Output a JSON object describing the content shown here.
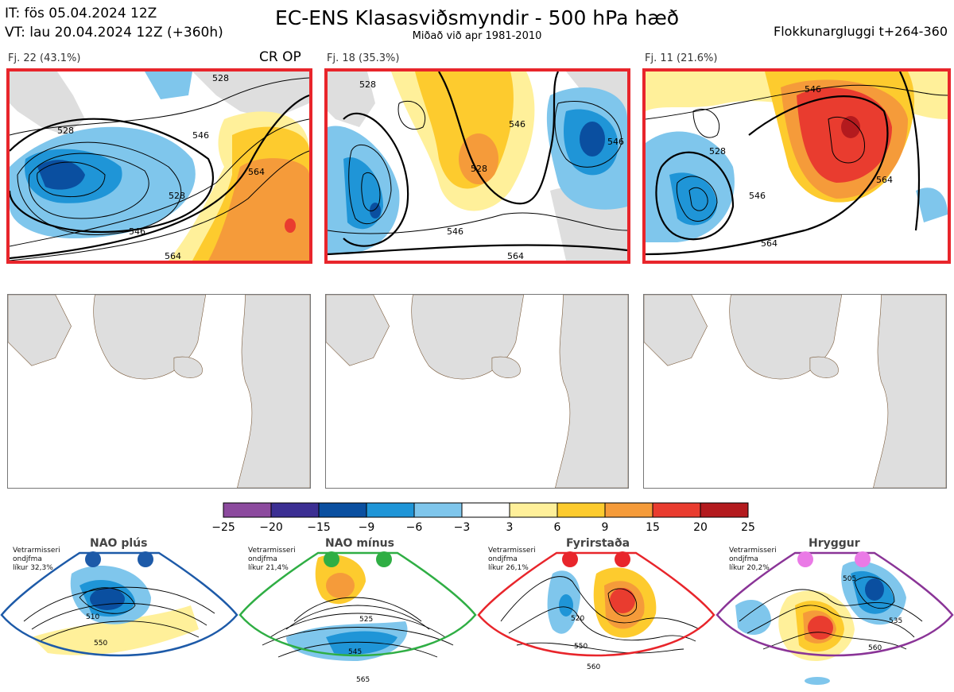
{
  "header": {
    "init_time": "IT: fös 05.04.2024 12Z",
    "valid_time": "VT: lau 20.04.2024 12Z  (+360h)",
    "title": "EC-ENS Klasasviðsmyndir - 500 hPa hæð",
    "subtitle": "Miðað við apr 1981-2010",
    "window": "Flokkunargluggi t+264-360"
  },
  "clusters": [
    {
      "label": "Fj. 22 (43.1%)",
      "contour_labels": [
        "528",
        "528",
        "546",
        "564",
        "546",
        "528",
        "564"
      ]
    },
    {
      "label": "Fj. 18 (35.3%)",
      "contour_labels": [
        "528",
        "546",
        "528",
        "546",
        "564",
        "546"
      ]
    },
    {
      "label": "Fj. 11 (21.6%)",
      "contour_labels": [
        "546",
        "528",
        "546",
        "564",
        "564"
      ]
    }
  ],
  "crop_label": "CR OP",
  "colorbar": {
    "ticks": [
      "−25",
      "−20",
      "−15",
      "−9",
      "−6",
      "−3",
      "3",
      "6",
      "9",
      "15",
      "20",
      "25"
    ],
    "colors": [
      "#8c4a9e",
      "#3c2f93",
      "#0a4fa0",
      "#1f95d7",
      "#7fc6ec",
      "#ffffff",
      "#fff09a",
      "#fdcb2e",
      "#f59b3a",
      "#e93c2f",
      "#b31a1e"
    ]
  },
  "regimes": [
    {
      "name": "NAO plús",
      "info": [
        "Vetrarmisseri",
        "ondjfma",
        "líkur 32,3%"
      ],
      "border": "#1d5aa8",
      "dot": "#1d5aa8",
      "labels": [
        "510",
        "550"
      ]
    },
    {
      "name": "NAO mínus",
      "info": [
        "Vetrarmisseri",
        "ondjfma",
        "líkur 21,4%"
      ],
      "border": "#2fae44",
      "dot": "#2fae44",
      "labels": [
        "525",
        "545",
        "565"
      ]
    },
    {
      "name": "Fyrirstaða",
      "info": [
        "Vetrarmisseri",
        "ondjfma",
        "líkur 26,1%"
      ],
      "border": "#e8252b",
      "dot": "#e8252b",
      "labels": [
        "520",
        "550",
        "560"
      ]
    },
    {
      "name": "Hryggur",
      "info": [
        "Vetrarmisseri",
        "ondjfma",
        "líkur 20,2%"
      ],
      "border": "#8a3497",
      "dot": "#ea7ae6",
      "labels": [
        "505",
        "535",
        "560"
      ]
    }
  ]
}
